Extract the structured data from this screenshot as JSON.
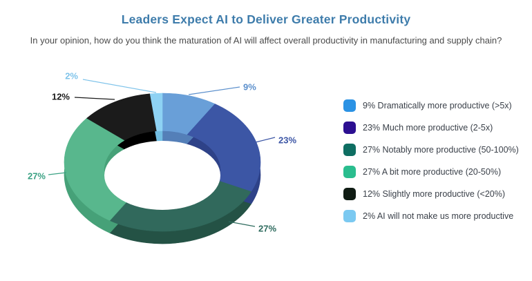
{
  "header": {
    "title": "Leaders Expect AI to Deliver Greater Productivity",
    "title_color": "#3e7cab",
    "subtitle": "In your opinion, how do you think the maturation of AI will affect overall productivity in manufacturing and supply chain?",
    "subtitle_color": "#4a4a4a"
  },
  "chart_data": {
    "type": "pie",
    "variant": "3d-donut",
    "title": "Leaders Expect AI to Deliver Greater Productivity",
    "question": "In your opinion, how do you think the maturation of AI will affect overall productivity in manufacturing and supply chain?",
    "unit": "%",
    "total": 100,
    "start_angle_deg": 0,
    "direction": "clockwise",
    "legend_position": "right",
    "slices": [
      {
        "value": 9,
        "pct_label": "9%",
        "name": "Dramatically more productive (>5x)",
        "legend_label": "9% Dramatically more productive (>5x)",
        "color": "#699fd8",
        "side_color": "#547fb8",
        "legend_color": "#2b92e4",
        "label_color": "#5b8fcc"
      },
      {
        "value": 23,
        "pct_label": "23%",
        "name": "Much more productive (2-5x)",
        "legend_label": "23% Much more productive (2-5x)",
        "color": "#3c56a5",
        "side_color": "#2e4288",
        "legend_color": "#2c0f91",
        "label_color": "#3b55a5"
      },
      {
        "value": 27,
        "pct_label": "27%",
        "name": "Notably more productive (50-100%)",
        "legend_label": "27% Notably more productive (50-100%)",
        "color": "#31695c",
        "side_color": "#245245",
        "legend_color": "#0e6e62",
        "label_color": "#2e6b5e"
      },
      {
        "value": 27,
        "pct_label": "27%",
        "name": "A bit more productive (20-50%)",
        "legend_label": "27% A bit more productive (20-50%)",
        "color": "#58b78d",
        "side_color": "#46a178",
        "legend_color": "#2abd8e",
        "label_color": "#3aa183"
      },
      {
        "value": 12,
        "pct_label": "12%",
        "name": "Slightly more productive (<20%)",
        "legend_label": "12% Slightly more productive (<20%)",
        "color": "#1b1b1b",
        "side_color": "#000000",
        "legend_color": "#101c14",
        "label_color": "#1a1a1a"
      },
      {
        "value": 2,
        "pct_label": "2%",
        "name": "AI will not make us more productive",
        "legend_label": "2% AI will not make us more productive",
        "color": "#8ed2f4",
        "side_color": "#72bde2",
        "legend_color": "#7bc9f1",
        "label_color": "#7ec3ea"
      }
    ]
  }
}
